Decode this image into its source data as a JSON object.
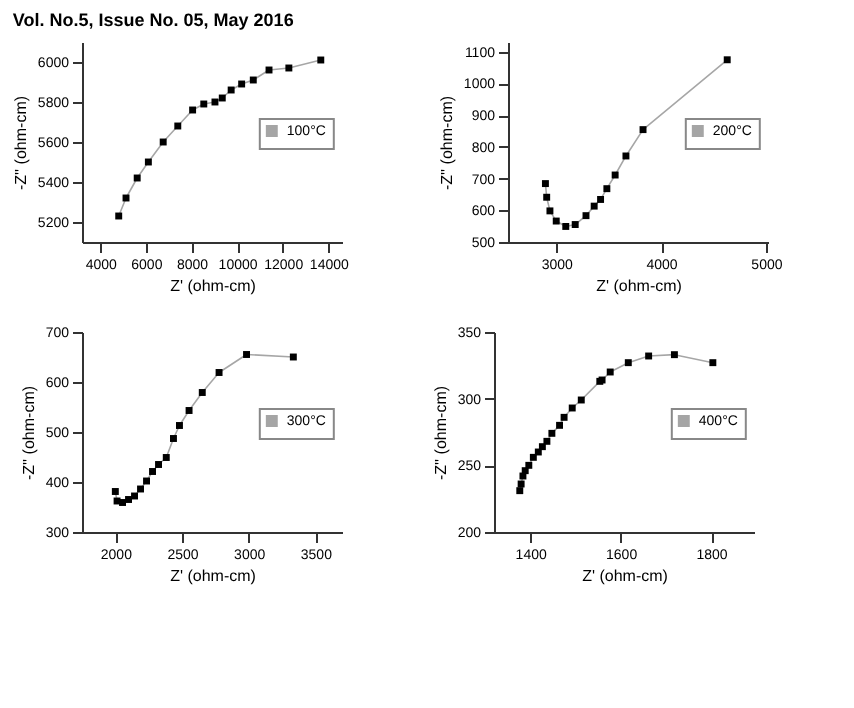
{
  "chart_data": [
    {
      "type": "line",
      "annotations": [
        "Vol. No.5, Issue No. 05, May 2016"
      ],
      "xlabel": "Z' (ohm-cm)",
      "ylabel": "-Z'' (ohm-cm)",
      "xlim": [
        3200,
        14600
      ],
      "ylim": [
        5100,
        6100
      ],
      "xticks": [
        4000,
        6000,
        8000,
        10000,
        12000,
        14000
      ],
      "yticks": [
        5200,
        5400,
        5600,
        5800,
        6000
      ],
      "grid": false,
      "legend": "right",
      "marker": "square",
      "line_style": "solid",
      "series": [
        {
          "name": "100°C",
          "color": "#000000",
          "x": [
            4810,
            5130,
            5620,
            6110,
            6760,
            7400,
            8050,
            8540,
            9030,
            9350,
            9740,
            10200,
            10710,
            11400,
            12270,
            13670
          ],
          "values": [
            5230,
            5320,
            5420,
            5500,
            5600,
            5680,
            5760,
            5790,
            5800,
            5820,
            5860,
            5890,
            5910,
            5960,
            5970,
            6010
          ]
        }
      ]
    },
    {
      "type": "line",
      "xlabel": "Z' (ohm-cm)",
      "ylabel": "-Z'' (ohm-cm)",
      "xlim": [
        2540,
        5020
      ],
      "ylim": [
        500,
        1130
      ],
      "xticks": [
        3000,
        4000,
        5000
      ],
      "yticks": [
        500,
        600,
        700,
        800,
        900,
        1000,
        1100
      ],
      "grid": false,
      "legend": "right",
      "marker": "square",
      "line_style": "solid",
      "series": [
        {
          "name": "200°C",
          "color": "#000000",
          "x": [
            2897,
            2909,
            2940,
            3000,
            3091,
            3181,
            3284,
            3362,
            3423,
            3483,
            3562,
            3665,
            3828,
            4631
          ],
          "values": [
            684,
            641,
            598,
            566,
            549,
            555,
            583,
            613,
            634,
            668,
            711,
            771,
            854,
            1074
          ]
        }
      ]
    },
    {
      "type": "line",
      "xlabel": "Z' (ohm-cm)",
      "ylabel": "-Z'' (ohm-cm)",
      "xlim": [
        1750,
        3700
      ],
      "ylim": [
        300,
        700
      ],
      "xticks": [
        2000,
        2500,
        3000,
        3500
      ],
      "yticks": [
        300,
        400,
        500,
        600,
        700
      ],
      "grid": false,
      "legend": "right",
      "marker": "square",
      "line_style": "solid",
      "series": [
        {
          "name": "300°C",
          "color": "#000000",
          "x": [
            2000,
            2013,
            2054,
            2099,
            2144,
            2189,
            2234,
            2279,
            2324,
            2382,
            2436,
            2481,
            2553,
            2652,
            2778,
            2984,
            3335
          ],
          "values": [
            381,
            362,
            359,
            365,
            372,
            386,
            402,
            421,
            435,
            449,
            487,
            513,
            543,
            579,
            619,
            655,
            650
          ]
        }
      ]
    },
    {
      "type": "line",
      "xlabel": "Z' (ohm-cm)",
      "ylabel": "-Z'' (ohm-cm)",
      "xlim": [
        1320,
        1895
      ],
      "ylim": [
        200,
        350
      ],
      "xticks": [
        1400,
        1600,
        1800
      ],
      "yticks": [
        200,
        250,
        300,
        350
      ],
      "grid": false,
      "legend": "right",
      "marker": "square",
      "line_style": "solid",
      "series": [
        {
          "name": "400°C",
          "color": "#000000",
          "x": [
            1377,
            1380,
            1384,
            1389,
            1397,
            1407,
            1418,
            1427,
            1437,
            1448,
            1465,
            1475,
            1493,
            1513,
            1554,
            1559,
            1577,
            1617,
            1662,
            1719,
            1804
          ],
          "values": [
            231,
            236,
            242,
            246,
            250,
            256,
            260,
            264,
            268,
            274,
            280,
            286,
            293,
            299,
            313,
            314,
            320,
            327,
            332,
            333,
            327
          ]
        }
      ]
    }
  ]
}
